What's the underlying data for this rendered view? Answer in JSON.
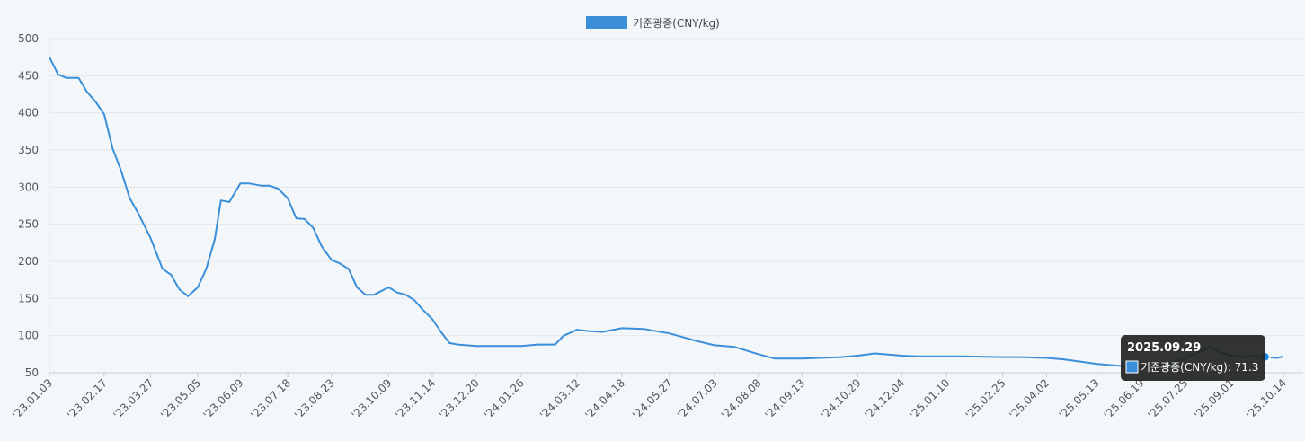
{
  "chart_data": {
    "type": "line",
    "legend": {
      "label": "기준광종(CNY/kg)",
      "position": "top-center"
    },
    "colors": {
      "series": "#3b8fd8",
      "background": "#f3f7fa",
      "tooltip_bg": "#222222"
    },
    "ylim": [
      50,
      500
    ],
    "yticks": [
      50,
      100,
      150,
      200,
      250,
      300,
      350,
      400,
      450,
      500
    ],
    "xlim": [
      "23.01.03",
      "25.10.17"
    ],
    "xtick_labels": [
      "'23.01.03",
      "'23.02.17",
      "'23.03.27",
      "'23.05.05",
      "'23.06.09",
      "'23.07.18",
      "'23.08.23",
      "'23.10.09",
      "'23.11.14",
      "'23.12.20",
      "'24.01.26",
      "'24.03.12",
      "'24.04.18",
      "'24.05.27",
      "'24.07.03",
      "'24.08.08",
      "'24.09.13",
      "'24.10.29",
      "'24.12.04",
      "'25.01.10",
      "'25.02.25",
      "'25.04.02",
      "'25.05.13",
      "'25.06.19",
      "'25.07.25",
      "'25.09.01",
      "'25.10.14"
    ],
    "grid": true,
    "series": [
      {
        "name": "기준광종(CNY/kg)",
        "points": [
          [
            "23.01.03",
            475
          ],
          [
            "23.01.10",
            452
          ],
          [
            "23.01.17",
            447
          ],
          [
            "23.01.27",
            447
          ],
          [
            "23.02.03",
            428
          ],
          [
            "23.02.10",
            415
          ],
          [
            "23.02.17",
            398
          ],
          [
            "23.02.24",
            352
          ],
          [
            "23.03.03",
            322
          ],
          [
            "23.03.10",
            285
          ],
          [
            "23.03.17",
            265
          ],
          [
            "23.03.27",
            232
          ],
          [
            "23.04.06",
            190
          ],
          [
            "23.04.13",
            182
          ],
          [
            "23.04.20",
            162
          ],
          [
            "23.04.27",
            153
          ],
          [
            "23.05.05",
            165
          ],
          [
            "23.05.12",
            190
          ],
          [
            "23.05.19",
            230
          ],
          [
            "23.05.24",
            282
          ],
          [
            "23.05.31",
            280
          ],
          [
            "23.06.09",
            305
          ],
          [
            "23.06.16",
            305
          ],
          [
            "23.06.26",
            302
          ],
          [
            "23.07.03",
            302
          ],
          [
            "23.07.10",
            298
          ],
          [
            "23.07.18",
            285
          ],
          [
            "23.07.25",
            258
          ],
          [
            "23.08.01",
            257
          ],
          [
            "23.08.08",
            245
          ],
          [
            "23.08.15",
            220
          ],
          [
            "23.08.23",
            202
          ],
          [
            "23.08.30",
            197
          ],
          [
            "23.09.06",
            190
          ],
          [
            "23.09.13",
            165
          ],
          [
            "23.09.20",
            155
          ],
          [
            "23.09.27",
            155
          ],
          [
            "23.10.09",
            165
          ],
          [
            "23.10.16",
            158
          ],
          [
            "23.10.23",
            155
          ],
          [
            "23.10.30",
            148
          ],
          [
            "23.11.06",
            135
          ],
          [
            "23.11.14",
            122
          ],
          [
            "23.11.21",
            105
          ],
          [
            "23.11.28",
            90
          ],
          [
            "23.12.05",
            88
          ],
          [
            "23.12.12",
            87
          ],
          [
            "23.12.20",
            86
          ],
          [
            "24.01.05",
            86
          ],
          [
            "24.01.26",
            86
          ],
          [
            "24.02.09",
            88
          ],
          [
            "24.02.23",
            88
          ],
          [
            "24.03.01",
            100
          ],
          [
            "24.03.12",
            108
          ],
          [
            "24.03.22",
            106
          ],
          [
            "24.04.02",
            105
          ],
          [
            "24.04.18",
            110
          ],
          [
            "24.05.06",
            109
          ],
          [
            "24.05.16",
            106
          ],
          [
            "24.05.27",
            103
          ],
          [
            "24.06.07",
            98
          ],
          [
            "24.06.18",
            93
          ],
          [
            "24.07.03",
            87
          ],
          [
            "24.07.19",
            85
          ],
          [
            "24.08.08",
            75
          ],
          [
            "24.08.22",
            69
          ],
          [
            "24.09.13",
            69
          ],
          [
            "24.09.27",
            70
          ],
          [
            "24.10.15",
            71
          ],
          [
            "24.10.29",
            73
          ],
          [
            "24.11.12",
            76
          ],
          [
            "24.12.04",
            73
          ],
          [
            "24.12.18",
            72
          ],
          [
            "25.01.10",
            72
          ],
          [
            "25.01.24",
            72
          ],
          [
            "25.02.25",
            71
          ],
          [
            "25.03.11",
            71
          ],
          [
            "25.04.02",
            70
          ],
          [
            "25.04.16",
            68
          ],
          [
            "25.04.30",
            65
          ],
          [
            "25.05.13",
            62
          ],
          [
            "25.05.27",
            60
          ],
          [
            "25.06.10",
            58
          ],
          [
            "25.06.19",
            57
          ],
          [
            "25.07.03",
            60
          ],
          [
            "25.07.18",
            66
          ],
          [
            "25.07.25",
            70
          ],
          [
            "25.08.05",
            78
          ],
          [
            "25.08.15",
            85
          ],
          [
            "25.08.22",
            78
          ],
          [
            "25.09.01",
            73
          ],
          [
            "25.09.10",
            71
          ],
          [
            "25.09.19",
            72
          ],
          [
            "25.09.29",
            71.3
          ],
          [
            "25.10.09",
            70
          ],
          [
            "25.10.14",
            72
          ]
        ]
      }
    ],
    "tooltip": {
      "date": "2025.09.29",
      "series_label": "기준광종(CNY/kg)",
      "value": "71.3",
      "text": "기준광종(CNY/kg): 71.3",
      "x": "25.09.29",
      "y": 71.3
    }
  }
}
